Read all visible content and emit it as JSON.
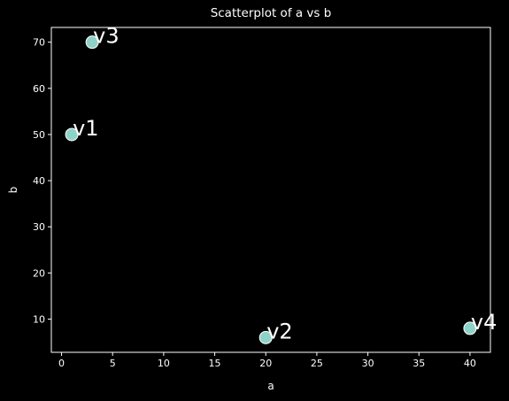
{
  "chart_data": {
    "type": "scatter",
    "title": "Scatterplot of a vs b",
    "xlabel": "a",
    "ylabel": "b",
    "xlim": [
      -1,
      42
    ],
    "ylim": [
      2.8,
      73.2
    ],
    "xticks": [
      0,
      5,
      10,
      15,
      20,
      25,
      30,
      35,
      40
    ],
    "yticks": [
      10,
      20,
      30,
      40,
      50,
      60,
      70
    ],
    "grid": false,
    "points": [
      {
        "label": "v1",
        "x": 1,
        "y": 50
      },
      {
        "label": "v2",
        "x": 20,
        "y": 6
      },
      {
        "label": "v3",
        "x": 3,
        "y": 70
      },
      {
        "label": "v4",
        "x": 40,
        "y": 8
      }
    ],
    "colors": {
      "background": "#000000",
      "foreground": "#ffffff",
      "marker_fill": "#8dd3c7",
      "marker_edge": "#ffffff"
    }
  }
}
